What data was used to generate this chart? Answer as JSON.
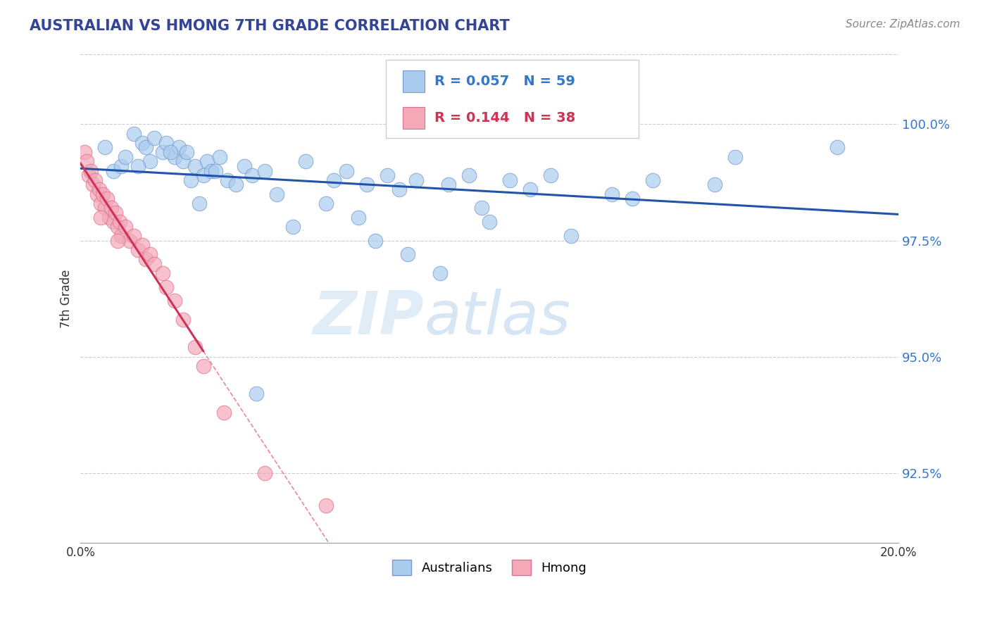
{
  "title": "AUSTRALIAN VS HMONG 7TH GRADE CORRELATION CHART",
  "source": "Source: ZipAtlas.com",
  "ylabel": "7th Grade",
  "xlim": [
    0.0,
    20.0
  ],
  "ylim": [
    91.0,
    101.5
  ],
  "yticks": [
    92.5,
    95.0,
    97.5,
    100.0
  ],
  "ytick_labels": [
    "92.5%",
    "95.0%",
    "97.5%",
    "100.0%"
  ],
  "xticks": [
    0.0,
    5.0,
    10.0,
    15.0,
    20.0
  ],
  "xtick_labels": [
    "0.0%",
    "",
    "",
    "",
    "20.0%"
  ],
  "legend_label1": "Australians",
  "legend_label2": "Hmong",
  "blue_color": "#aaccee",
  "pink_color": "#f4a8b8",
  "blue_edge_color": "#7799cc",
  "pink_edge_color": "#e07090",
  "blue_line_color": "#2255aa",
  "pink_line_color": "#cc3355",
  "pink_dashed_color": "#ee8899",
  "watermark_zip": "ZIP",
  "watermark_atlas": "atlas",
  "australian_x": [
    1.3,
    1.5,
    1.6,
    1.8,
    2.0,
    2.1,
    2.3,
    2.4,
    2.5,
    2.6,
    2.8,
    3.0,
    3.1,
    3.2,
    3.4,
    3.6,
    4.0,
    4.2,
    4.5,
    5.5,
    6.2,
    6.5,
    7.0,
    7.5,
    7.8,
    8.2,
    9.0,
    9.5,
    10.5,
    11.0,
    11.5,
    13.0,
    14.0,
    15.5,
    18.5,
    0.8,
    1.0,
    1.1,
    1.7,
    2.2,
    2.7,
    3.3,
    3.8,
    4.8,
    5.2,
    6.0,
    6.8,
    7.2,
    8.0,
    8.8,
    9.8,
    10.0,
    12.0,
    13.5,
    16.0,
    0.6,
    1.4,
    2.9,
    4.3
  ],
  "australian_y": [
    99.8,
    99.6,
    99.5,
    99.7,
    99.4,
    99.6,
    99.3,
    99.5,
    99.2,
    99.4,
    99.1,
    98.9,
    99.2,
    99.0,
    99.3,
    98.8,
    99.1,
    98.9,
    99.0,
    99.2,
    98.8,
    99.0,
    98.7,
    98.9,
    98.6,
    98.8,
    98.7,
    98.9,
    98.8,
    98.6,
    98.9,
    98.5,
    98.8,
    98.7,
    99.5,
    99.0,
    99.1,
    99.3,
    99.2,
    99.4,
    98.8,
    99.0,
    98.7,
    98.5,
    97.8,
    98.3,
    98.0,
    97.5,
    97.2,
    96.8,
    98.2,
    97.9,
    97.6,
    98.4,
    99.3,
    99.5,
    99.1,
    98.3,
    94.2
  ],
  "hmong_x": [
    0.1,
    0.15,
    0.2,
    0.25,
    0.3,
    0.35,
    0.4,
    0.45,
    0.5,
    0.55,
    0.6,
    0.65,
    0.7,
    0.75,
    0.8,
    0.85,
    0.9,
    0.95,
    1.0,
    1.1,
    1.2,
    1.3,
    1.4,
    1.5,
    1.6,
    1.7,
    1.8,
    2.0,
    2.1,
    2.3,
    2.5,
    2.8,
    3.0,
    3.5,
    4.5,
    6.0,
    0.5,
    0.9
  ],
  "hmong_y": [
    99.4,
    99.2,
    98.9,
    99.0,
    98.7,
    98.8,
    98.5,
    98.6,
    98.3,
    98.5,
    98.2,
    98.4,
    98.0,
    98.2,
    97.9,
    98.1,
    97.8,
    97.9,
    97.6,
    97.8,
    97.5,
    97.6,
    97.3,
    97.4,
    97.1,
    97.2,
    97.0,
    96.8,
    96.5,
    96.2,
    95.8,
    95.2,
    94.8,
    93.8,
    92.5,
    91.8,
    98.0,
    97.5
  ]
}
